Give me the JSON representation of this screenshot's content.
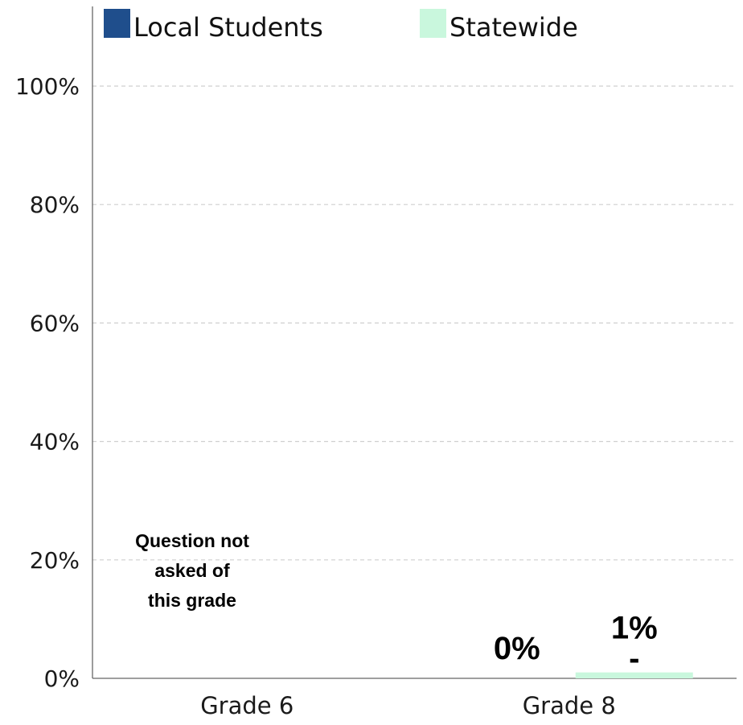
{
  "chart_data": {
    "type": "bar",
    "categories": [
      "Grade 6",
      "Grade 8"
    ],
    "series": [
      {
        "name": "Local Students",
        "color": "#1f4e8c",
        "values": [
          null,
          0
        ],
        "labels": [
          "",
          "0%"
        ]
      },
      {
        "name": "Statewide",
        "color": "#c9f7dd",
        "values": [
          null,
          1
        ],
        "labels": [
          "",
          "1%"
        ],
        "error_labels": [
          "",
          "-"
        ]
      }
    ],
    "ylim": [
      0,
      100
    ],
    "yticks": [
      0,
      20,
      40,
      60,
      80,
      100
    ],
    "ytick_labels": [
      "0%",
      "20%",
      "40%",
      "60%",
      "80%",
      "100%"
    ],
    "grid": true,
    "legend_position": "top",
    "notes": [
      {
        "category": "Grade 6",
        "lines": [
          "Question not",
          "asked of",
          "this grade"
        ]
      }
    ],
    "title": "",
    "xlabel": "",
    "ylabel": ""
  }
}
